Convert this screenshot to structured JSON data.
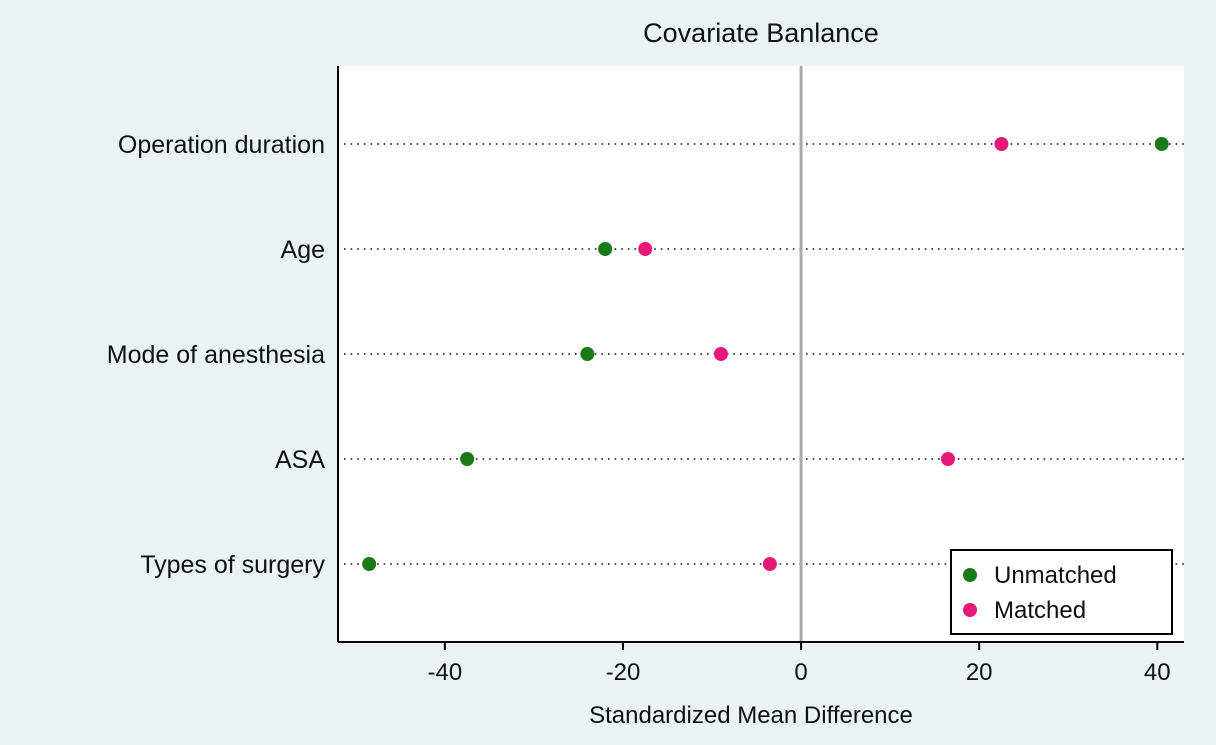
{
  "chart_data": {
    "type": "scatter",
    "title": "Covariate Banlance",
    "xlabel": "Standardized Mean Difference",
    "ylabel": "",
    "xlim": [
      -52,
      43
    ],
    "xticks": [
      -40,
      -20,
      0,
      20,
      40
    ],
    "xtick_labels": [
      "-40",
      "-20",
      "0",
      "20",
      "40"
    ],
    "categories": [
      "Operation duration",
      "Age",
      "Mode of anesthesia",
      "ASA",
      "Types of surgery"
    ],
    "series": [
      {
        "name": "Unmatched",
        "color": "#1a7a1a",
        "values": [
          40.5,
          -22,
          -24,
          -37.5,
          -48.5
        ]
      },
      {
        "name": "Matched",
        "color": "#e8187a",
        "values": [
          22.5,
          -17.5,
          -9,
          16.5,
          -3.5
        ]
      }
    ],
    "reference_line": 0,
    "legend_position": "bottom-right"
  }
}
